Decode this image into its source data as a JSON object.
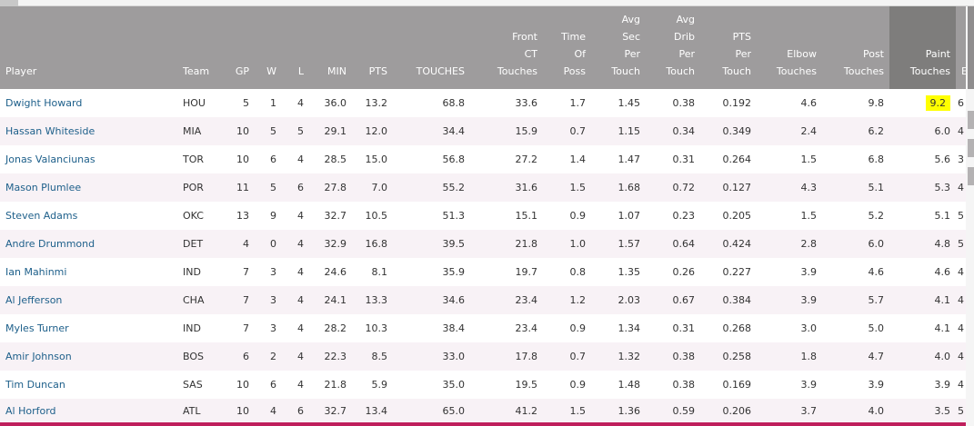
{
  "table": {
    "columns": [
      {
        "label": "Player"
      },
      {
        "label": "Team"
      },
      {
        "label": "GP"
      },
      {
        "label": "W"
      },
      {
        "label": "L"
      },
      {
        "label": "MIN"
      },
      {
        "label": "PTS"
      },
      {
        "label": "TOUCHES"
      },
      {
        "label": "Front\nCT\nTouches"
      },
      {
        "label": "Time\nOf\nPoss"
      },
      {
        "label": "Avg\nSec\nPer\nTouch"
      },
      {
        "label": "Avg\nDrib\nPer\nTouch"
      },
      {
        "label": "PTS\nPer\nTouch"
      },
      {
        "label": "Elbow\nTouches"
      },
      {
        "label": "Post\nTouches"
      },
      {
        "label": "Paint\nTouches"
      },
      {
        "label": "E"
      }
    ],
    "sorted_column": "Paint Touches",
    "highlight_color": "#ffff00",
    "rows": [
      [
        "Dwight Howard",
        "HOU",
        "5",
        "1",
        "4",
        "36.0",
        "13.2",
        "68.8",
        "33.6",
        "1.7",
        "1.45",
        "0.38",
        "0.192",
        "4.6",
        "9.8",
        "9.2"
      ],
      [
        "Hassan Whiteside",
        "MIA",
        "10",
        "5",
        "5",
        "29.1",
        "12.0",
        "34.4",
        "15.9",
        "0.7",
        "1.15",
        "0.34",
        "0.349",
        "2.4",
        "6.2",
        "6.0"
      ],
      [
        "Jonas Valanciunas",
        "TOR",
        "10",
        "6",
        "4",
        "28.5",
        "15.0",
        "56.8",
        "27.2",
        "1.4",
        "1.47",
        "0.31",
        "0.264",
        "1.5",
        "6.8",
        "5.6"
      ],
      [
        "Mason Plumlee",
        "POR",
        "11",
        "5",
        "6",
        "27.8",
        "7.0",
        "55.2",
        "31.6",
        "1.5",
        "1.68",
        "0.72",
        "0.127",
        "4.3",
        "5.1",
        "5.3"
      ],
      [
        "Steven Adams",
        "OKC",
        "13",
        "9",
        "4",
        "32.7",
        "10.5",
        "51.3",
        "15.1",
        "0.9",
        "1.07",
        "0.23",
        "0.205",
        "1.5",
        "5.2",
        "5.1"
      ],
      [
        "Andre Drummond",
        "DET",
        "4",
        "0",
        "4",
        "32.9",
        "16.8",
        "39.5",
        "21.8",
        "1.0",
        "1.57",
        "0.64",
        "0.424",
        "2.8",
        "6.0",
        "4.8"
      ],
      [
        "Ian Mahinmi",
        "IND",
        "7",
        "3",
        "4",
        "24.6",
        "8.1",
        "35.9",
        "19.7",
        "0.8",
        "1.35",
        "0.26",
        "0.227",
        "3.9",
        "4.6",
        "4.6"
      ],
      [
        "Al Jefferson",
        "CHA",
        "7",
        "3",
        "4",
        "24.1",
        "13.3",
        "34.6",
        "23.4",
        "1.2",
        "2.03",
        "0.67",
        "0.384",
        "3.9",
        "5.7",
        "4.1"
      ],
      [
        "Myles Turner",
        "IND",
        "7",
        "3",
        "4",
        "28.2",
        "10.3",
        "38.4",
        "23.4",
        "0.9",
        "1.34",
        "0.31",
        "0.268",
        "3.0",
        "5.0",
        "4.1"
      ],
      [
        "Amir Johnson",
        "BOS",
        "6",
        "2",
        "4",
        "22.3",
        "8.5",
        "33.0",
        "17.8",
        "0.7",
        "1.32",
        "0.38",
        "0.258",
        "1.8",
        "4.7",
        "4.0"
      ],
      [
        "Tim Duncan",
        "SAS",
        "10",
        "6",
        "4",
        "21.8",
        "5.9",
        "35.0",
        "19.5",
        "0.9",
        "1.48",
        "0.38",
        "0.169",
        "3.9",
        "3.9",
        "3.9"
      ],
      [
        "Al Horford",
        "ATL",
        "10",
        "4",
        "6",
        "32.7",
        "13.4",
        "65.0",
        "41.2",
        "1.5",
        "1.36",
        "0.59",
        "0.206",
        "3.7",
        "4.0",
        "3.5"
      ]
    ],
    "clipped_column_values": [
      "6",
      "4",
      "3",
      "4",
      "5",
      "5",
      "4",
      "4",
      "4",
      "4",
      "4",
      "5"
    ]
  }
}
